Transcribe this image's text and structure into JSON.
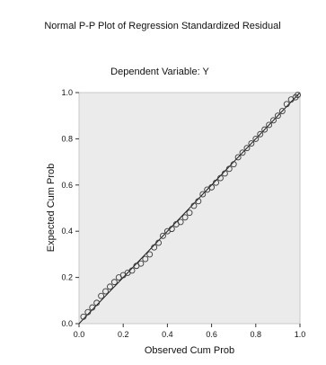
{
  "chart_data": {
    "type": "scatter",
    "title": "Normal P-P Plot of Regression Standardized Residual",
    "subtitle": "Dependent Variable: Y",
    "xlabel": "Observed Cum Prob",
    "ylabel": "Expected Cum Prob",
    "xlim": [
      0.0,
      1.0
    ],
    "ylim": [
      0.0,
      1.0
    ],
    "x_ticks": [
      "0.0",
      "0.2",
      "0.4",
      "0.6",
      "0.8",
      "1.0"
    ],
    "y_ticks": [
      "0.0",
      "0.2",
      "0.4",
      "0.6",
      "0.8",
      "1.0"
    ],
    "grid": false,
    "reference_line": {
      "from": [
        0.0,
        0.0
      ],
      "to": [
        1.0,
        1.0
      ]
    },
    "colors": {
      "plot_background": "#ebebeb",
      "points": "#3a3a3a",
      "reference_line": "#1a1a1a"
    },
    "series": [
      {
        "points": [
          [
            0.02,
            0.03
          ],
          [
            0.04,
            0.05
          ],
          [
            0.06,
            0.07
          ],
          [
            0.08,
            0.09
          ],
          [
            0.1,
            0.12
          ],
          [
            0.12,
            0.14
          ],
          [
            0.14,
            0.16
          ],
          [
            0.16,
            0.18
          ],
          [
            0.18,
            0.2
          ],
          [
            0.2,
            0.21
          ],
          [
            0.22,
            0.22
          ],
          [
            0.24,
            0.23
          ],
          [
            0.26,
            0.25
          ],
          [
            0.28,
            0.26
          ],
          [
            0.3,
            0.28
          ],
          [
            0.32,
            0.3
          ],
          [
            0.34,
            0.33
          ],
          [
            0.36,
            0.35
          ],
          [
            0.38,
            0.38
          ],
          [
            0.4,
            0.4
          ],
          [
            0.42,
            0.41
          ],
          [
            0.44,
            0.43
          ],
          [
            0.46,
            0.44
          ],
          [
            0.48,
            0.46
          ],
          [
            0.5,
            0.48
          ],
          [
            0.52,
            0.51
          ],
          [
            0.54,
            0.53
          ],
          [
            0.56,
            0.56
          ],
          [
            0.58,
            0.58
          ],
          [
            0.6,
            0.59
          ],
          [
            0.62,
            0.61
          ],
          [
            0.64,
            0.63
          ],
          [
            0.66,
            0.65
          ],
          [
            0.68,
            0.67
          ],
          [
            0.7,
            0.69
          ],
          [
            0.72,
            0.72
          ],
          [
            0.74,
            0.74
          ],
          [
            0.76,
            0.76
          ],
          [
            0.78,
            0.78
          ],
          [
            0.8,
            0.8
          ],
          [
            0.82,
            0.82
          ],
          [
            0.84,
            0.84
          ],
          [
            0.86,
            0.86
          ],
          [
            0.88,
            0.88
          ],
          [
            0.9,
            0.9
          ],
          [
            0.92,
            0.92
          ],
          [
            0.94,
            0.95
          ],
          [
            0.96,
            0.97
          ],
          [
            0.98,
            0.98
          ],
          [
            0.99,
            0.99
          ]
        ]
      }
    ]
  }
}
